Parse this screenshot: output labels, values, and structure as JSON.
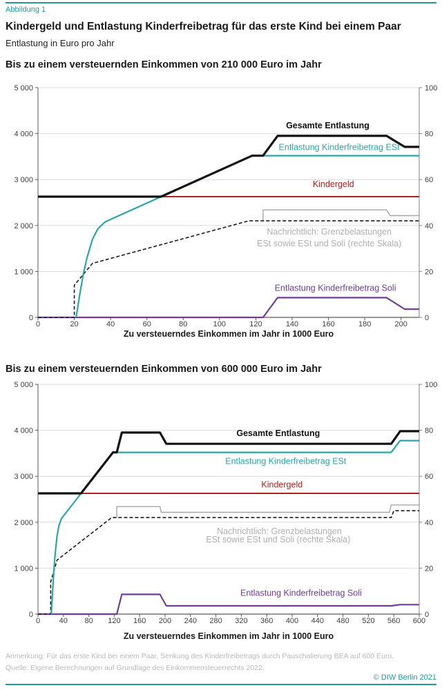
{
  "page": {
    "figure_label": "Abbildung 1",
    "title": "Kindergeld und Entlastung Kinderfreibetrag für das erste Kind bei einem Paar",
    "subtitle": "Entlastung in Euro pro Jahr",
    "note": "Anmerkung: Für das erste Kind bei einem Paar, Senkung des Kinderfreibetrags durch Pauschalierung BEA auf 600 Euro.",
    "source": "Quelle: Eigene Berechnungen auf Grundlage des Einkommensteuerrechts 2022.",
    "copyright": "© DIW Berlin 2021",
    "colors": {
      "accent_teal": "#1f9a9a",
      "line_black": "#111111",
      "line_teal": "#29a7a7",
      "line_red": "#b0211f",
      "line_purple": "#6f3d99",
      "line_gray": "#a6a6a6",
      "annotation_gray": "#b0b0b0"
    }
  },
  "chart_data": [
    {
      "type": "line",
      "title": "Bis zu einem versteuernden Einkommen von 210 000 Euro im Jahr",
      "xlabel": "Zu versteuerndes Einkommen im Jahr in 1000 Euro",
      "xlim": [
        0,
        210
      ],
      "ylim_left": [
        0,
        5000
      ],
      "ylim_right": [
        0,
        100
      ],
      "x_ticks": [
        "0",
        "20",
        "40",
        "60",
        "80",
        "100",
        "120",
        "140",
        "160",
        "180",
        "200"
      ],
      "y_ticks_left": [
        "0",
        "1 000",
        "2 000",
        "3 000",
        "4 000",
        "5 000"
      ],
      "y_ticks_right": [
        "0",
        "20",
        "40",
        "60",
        "80",
        "100"
      ],
      "grid": true,
      "legend_position": "inline-annotations",
      "series": [
        {
          "name": "Grenzbelastung ESt und Soli (rechte Skala)",
          "axis": "right",
          "color": "#a6a6a6",
          "width": 1.4,
          "points": [
            [
              124,
              42
            ],
            [
              124,
              46.8
            ],
            [
              192,
              46.8
            ],
            [
              194,
              44.3
            ],
            [
              210,
              44.3
            ]
          ]
        },
        {
          "name": "Entlastung Kinderfreibetrag Soli",
          "axis": "left",
          "color": "#6f3d99",
          "width": 2.2,
          "points": [
            [
              0,
              0
            ],
            [
              124,
              0
            ],
            [
              132,
              430
            ],
            [
              192,
              430
            ],
            [
              202,
              180
            ],
            [
              210,
              180
            ]
          ]
        },
        {
          "name": "Grenzbelastung ESt (rechte Skala)",
          "axis": "right",
          "color": "#1a1a1a",
          "width": 1.6,
          "dash": "5 3",
          "points": [
            [
              0,
              0
            ],
            [
              20,
              0
            ],
            [
              20,
              14
            ],
            [
              30,
              23.5
            ],
            [
              116,
              42
            ],
            [
              210,
              42
            ]
          ]
        },
        {
          "name": "Kindergeld",
          "axis": "left",
          "color": "#b0211f",
          "width": 2,
          "points": [
            [
              0,
              2628
            ],
            [
              210,
              2628
            ]
          ]
        },
        {
          "name": "Entlastung Kinderfreibetrag ESt",
          "axis": "left",
          "color": "#29a7a7",
          "width": 2.2,
          "points": [
            [
              21,
              0
            ],
            [
              23,
              500
            ],
            [
              25,
              950
            ],
            [
              27,
              1300
            ],
            [
              30,
              1700
            ],
            [
              33,
              1930
            ],
            [
              37,
              2080
            ],
            [
              118,
              3520
            ],
            [
              210,
              3520
            ]
          ]
        },
        {
          "name": "Gesamte Entlastung",
          "axis": "left",
          "color": "#111111",
          "width": 3.2,
          "points": [
            [
              0,
              2628
            ],
            [
              67.8,
              2628
            ],
            [
              118,
              3520
            ],
            [
              124,
              3520
            ],
            [
              132,
              3950
            ],
            [
              192,
              3950
            ],
            [
              202,
              3710
            ],
            [
              210,
              3710
            ]
          ]
        }
      ],
      "annotations": [
        {
          "text": "Gesamte Entlastung",
          "color": "#111111",
          "bold": true,
          "fx": 0.76,
          "fy": 0.165
        },
        {
          "text": "Entlastung Kinderfreibetrag ESt",
          "color": "#29a7a7",
          "bold": false,
          "fx": 0.79,
          "fy": 0.26
        },
        {
          "text": "Kindergeld",
          "color": "#b0211f",
          "bold": false,
          "fx": 0.775,
          "fy": 0.42
        },
        {
          "text": "Nachrichtlich: Grenzbelastungen",
          "color": "#b0b0b0",
          "bold": false,
          "fx": 0.764,
          "fy": 0.627
        },
        {
          "text": "ESt sowie ESt und Soli (rechte Skala)",
          "color": "#b0b0b0",
          "bold": false,
          "fx": 0.764,
          "fy": 0.678
        },
        {
          "text": "Entlastung Kinderfreibetrag Soli",
          "color": "#6f3d99",
          "bold": false,
          "fx": 0.78,
          "fy": 0.872
        }
      ]
    },
    {
      "type": "line",
      "title": "Bis zu einem versteuernden Einkommen von 600 000 Euro im Jahr",
      "xlabel": "Zu versteuerndes Einkommen im Jahr in 1000 Euro",
      "xlim": [
        0,
        600
      ],
      "ylim_left": [
        0,
        5000
      ],
      "ylim_right": [
        0,
        100
      ],
      "x_ticks": [
        "0",
        "40",
        "80",
        "120",
        "160",
        "200",
        "240",
        "280",
        "320",
        "360",
        "400",
        "440",
        "480",
        "520",
        "560",
        "600"
      ],
      "y_ticks_left": [
        "0",
        "1 000",
        "2 000",
        "3 000",
        "4 000",
        "5 000"
      ],
      "y_ticks_right": [
        "0",
        "20",
        "40",
        "60",
        "80",
        "100"
      ],
      "grid": true,
      "legend_position": "inline-annotations",
      "series": [
        {
          "name": "Grenzbelastung ESt und Soli (rechte Skala)",
          "axis": "right",
          "color": "#a6a6a6",
          "width": 1.4,
          "points": [
            [
              124,
              42
            ],
            [
              124,
              46.8
            ],
            [
              192,
              46.8
            ],
            [
              194,
              44.3
            ],
            [
              553,
              44.3
            ],
            [
              556,
              47.5
            ],
            [
              600,
              47.5
            ]
          ]
        },
        {
          "name": "Entlastung Kinderfreibetrag Soli",
          "axis": "left",
          "color": "#6f3d99",
          "width": 2.2,
          "points": [
            [
              0,
              0
            ],
            [
              124,
              0
            ],
            [
              132,
              430
            ],
            [
              192,
              430
            ],
            [
              202,
              180
            ],
            [
              556,
              180
            ],
            [
              570,
              205
            ],
            [
              600,
              205
            ]
          ]
        },
        {
          "name": "Grenzbelastung ESt (rechte Skala)",
          "axis": "right",
          "color": "#1a1a1a",
          "width": 1.6,
          "dash": "5 3",
          "points": [
            [
              0,
              0
            ],
            [
              20,
              0
            ],
            [
              20,
              14
            ],
            [
              30,
              23.5
            ],
            [
              116,
              42
            ],
            [
              556,
              42
            ],
            [
              560,
              45
            ],
            [
              600,
              45
            ]
          ]
        },
        {
          "name": "Kindergeld",
          "axis": "left",
          "color": "#b0211f",
          "width": 2,
          "points": [
            [
              0,
              2628
            ],
            [
              600,
              2628
            ]
          ]
        },
        {
          "name": "Entlastung Kinderfreibetrag ESt",
          "axis": "left",
          "color": "#29a7a7",
          "width": 2.2,
          "points": [
            [
              21,
              0
            ],
            [
              23,
              500
            ],
            [
              25,
              950
            ],
            [
              27,
              1300
            ],
            [
              30,
              1700
            ],
            [
              33,
              1930
            ],
            [
              37,
              2080
            ],
            [
              118,
              3520
            ],
            [
              556,
              3520
            ],
            [
              570,
              3775
            ],
            [
              600,
              3775
            ]
          ]
        },
        {
          "name": "Gesamte Entlastung",
          "axis": "left",
          "color": "#111111",
          "width": 3.2,
          "points": [
            [
              0,
              2628
            ],
            [
              67.8,
              2628
            ],
            [
              118,
              3520
            ],
            [
              124,
              3520
            ],
            [
              132,
              3950
            ],
            [
              192,
              3950
            ],
            [
              202,
              3705
            ],
            [
              556,
              3705
            ],
            [
              570,
              3980
            ],
            [
              600,
              3980
            ]
          ]
        }
      ],
      "annotations": [
        {
          "text": "Gesamte Entlastung",
          "color": "#111111",
          "bold": true,
          "fx": 0.63,
          "fy": 0.213
        },
        {
          "text": "Entlastung Kinderfreibetrag ESt",
          "color": "#29a7a7",
          "bold": false,
          "fx": 0.65,
          "fy": 0.335
        },
        {
          "text": "Kindergeld",
          "color": "#b0211f",
          "bold": false,
          "fx": 0.64,
          "fy": 0.437
        },
        {
          "text": "Nachrichtlich: Grenzbelastungen",
          "color": "#b0b0b0",
          "bold": false,
          "fx": 0.633,
          "fy": 0.64
        },
        {
          "text": "ESt sowie ESt und Soli (rechte Skala)",
          "color": "#b0b0b0",
          "bold": false,
          "fx": 0.63,
          "fy": 0.676
        },
        {
          "text": "Entlastung Kinderfreibetrag Soli",
          "color": "#6f3d99",
          "bold": false,
          "fx": 0.69,
          "fy": 0.908
        }
      ]
    }
  ]
}
